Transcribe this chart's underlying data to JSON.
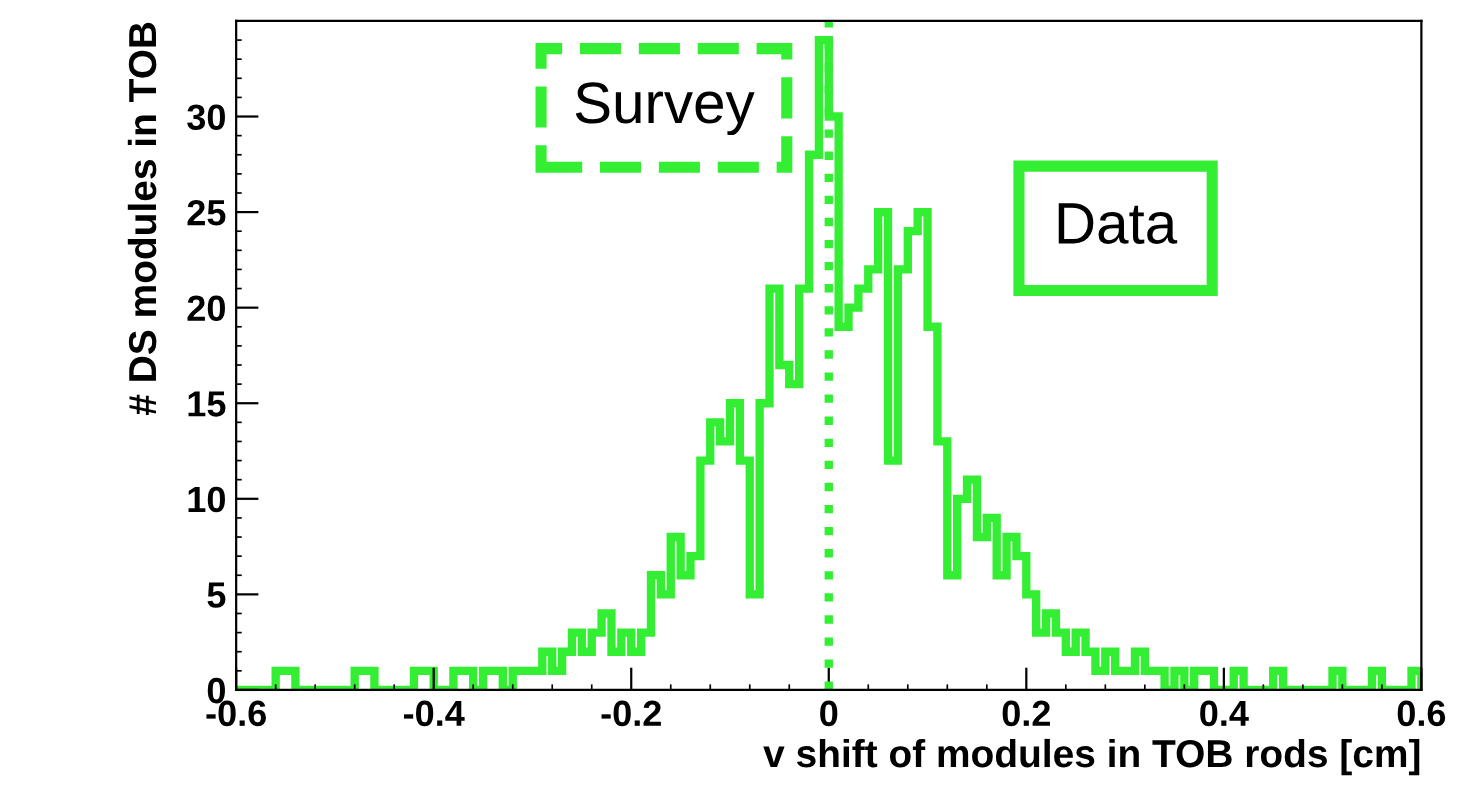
{
  "chart_data": {
    "type": "histogram",
    "xlabel": "v shift of modules in TOB rods [cm]",
    "ylabel": "# DS modules in TOB",
    "bins": [
      -0.6,
      -0.59,
      -0.58,
      -0.57,
      -0.56,
      -0.55,
      -0.54,
      -0.53,
      -0.52,
      -0.51,
      -0.5,
      -0.49,
      -0.48,
      -0.47,
      -0.46,
      -0.45,
      -0.44,
      -0.43,
      -0.42,
      -0.41,
      -0.4,
      -0.39,
      -0.38,
      -0.37,
      -0.36,
      -0.35,
      -0.34,
      -0.33,
      -0.32,
      -0.31,
      -0.3,
      -0.29,
      -0.28,
      -0.27,
      -0.26,
      -0.25,
      -0.24,
      -0.23,
      -0.22,
      -0.21,
      -0.2,
      -0.19,
      -0.18,
      -0.17,
      -0.16,
      -0.15,
      -0.14,
      -0.13,
      -0.12,
      -0.11,
      -0.1,
      -0.09,
      -0.08,
      -0.07,
      -0.06,
      -0.05,
      -0.04,
      -0.03,
      -0.02,
      -0.01,
      0,
      0.01,
      0.02,
      0.03,
      0.04,
      0.05,
      0.06,
      0.07,
      0.08,
      0.09,
      0.1,
      0.11,
      0.12,
      0.13,
      0.14,
      0.15,
      0.16,
      0.17,
      0.18,
      0.19,
      0.2,
      0.21,
      0.22,
      0.23,
      0.24,
      0.25,
      0.26,
      0.27,
      0.28,
      0.29,
      0.3,
      0.31,
      0.32,
      0.33,
      0.34,
      0.35,
      0.36,
      0.37,
      0.38,
      0.39,
      0.4,
      0.41,
      0.42,
      0.43,
      0.44,
      0.45,
      0.46,
      0.47,
      0.48,
      0.49,
      0.5,
      0.51,
      0.52,
      0.53,
      0.54,
      0.55,
      0.56,
      0.57,
      0.58,
      0.59,
      0.6
    ],
    "series": [
      {
        "name": "Data",
        "color": "#33ee33",
        "values": [
          0,
          0,
          0,
          0,
          1,
          1,
          0,
          0,
          0,
          0,
          0,
          0,
          1,
          1,
          0,
          0,
          0,
          0,
          1,
          1,
          0,
          0,
          1,
          1,
          0,
          1,
          1,
          0,
          1,
          1,
          1,
          2,
          1,
          2,
          3,
          2,
          3,
          4,
          2,
          3,
          2,
          3,
          6,
          5,
          8,
          6,
          7,
          12,
          14,
          13,
          15,
          12,
          5,
          15,
          21,
          17,
          16,
          21,
          28,
          34,
          30,
          19,
          20,
          21,
          22,
          25,
          12,
          22,
          24,
          25,
          19,
          13,
          6,
          10,
          11,
          8,
          9,
          6,
          8,
          7,
          5,
          3,
          4,
          3,
          2,
          3,
          2,
          1,
          2,
          1,
          1,
          2,
          1,
          1,
          0,
          1,
          0,
          1,
          1,
          0,
          0,
          1,
          0,
          0,
          0,
          1,
          0,
          0,
          0,
          0,
          0,
          1,
          0,
          0,
          0,
          1,
          0,
          0,
          0,
          1
        ]
      }
    ],
    "ref_lines": [
      {
        "axis": "x",
        "value": 0,
        "label": "Survey",
        "color": "#33ee33",
        "line_style": "dotted"
      }
    ],
    "xlim": [
      -0.6,
      0.6
    ],
    "xticks": [
      {
        "value": -0.6,
        "label": "-0.6"
      },
      {
        "value": -0.4,
        "label": "-0.4"
      },
      {
        "value": -0.2,
        "label": "-0.2"
      },
      0,
      0.2,
      0.4,
      0.6
    ],
    "ylim": [
      0,
      35
    ],
    "yticks": [
      0,
      5,
      10,
      15,
      20,
      25,
      30
    ],
    "legend": "top",
    "grid": false
  }
}
